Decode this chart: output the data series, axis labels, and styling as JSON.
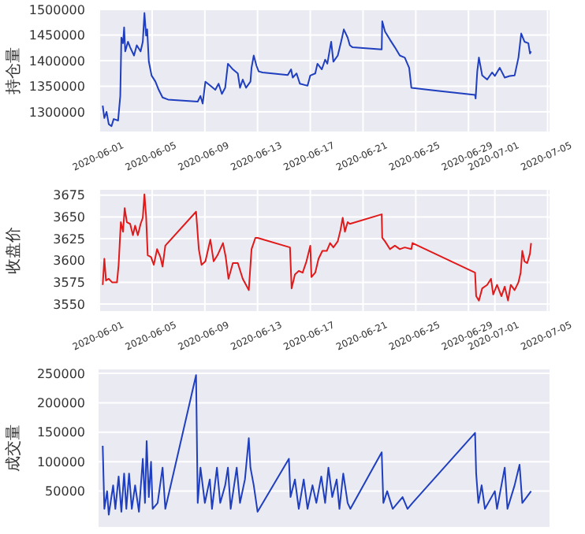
{
  "chart_data": [
    {
      "type": "line",
      "ylabel": "持仓量",
      "color": "#1f3fbf",
      "grid": true,
      "x": [
        "2020-06-01T06:00",
        "2020-06-01T09:00",
        "2020-06-01T13:00",
        "2020-06-01T17:00",
        "2020-06-01T22:00",
        "2020-06-02T02:00",
        "2020-06-02T10:00",
        "2020-06-02T14:00",
        "2020-06-02T16:00",
        "2020-06-02T19:00",
        "2020-06-02T21:00",
        "2020-06-02T23:00",
        "2020-06-03T04:00",
        "2020-06-03T08:00",
        "2020-06-03T15:00",
        "2020-06-03T20:00",
        "2020-06-04T03:00",
        "2020-06-04T07:00",
        "2020-06-04T10:00",
        "2020-06-04T13:00",
        "2020-06-04T15:00",
        "2020-06-04T18:00",
        "2020-06-04T23:00",
        "2020-06-05T06:00",
        "2020-06-05T12:00",
        "2020-06-05T19:00",
        "2020-06-06T05:00",
        "2020-06-08T11:00",
        "2020-06-08T16:00",
        "2020-06-08T20:00",
        "2020-06-09T01:00",
        "2020-06-09T10:00",
        "2020-06-09T19:00",
        "2020-06-10T01:00",
        "2020-06-10T07:00",
        "2020-06-10T13:00",
        "2020-06-10T18:00",
        "2020-06-11T03:00",
        "2020-06-11T12:00",
        "2020-06-11T16:00",
        "2020-06-11T21:00",
        "2020-06-12T03:00",
        "2020-06-12T11:00",
        "2020-06-12T13:00",
        "2020-06-12T17:00",
        "2020-06-12T22:00",
        "2020-06-13T02:00",
        "2020-06-13T09:00",
        "2020-06-15T07:00",
        "2020-06-15T13:00",
        "2020-06-15T16:00",
        "2020-06-15T23:00",
        "2020-06-16T05:00",
        "2020-06-16T19:00",
        "2020-06-17T00:00",
        "2020-06-17T09:00",
        "2020-06-17T13:00",
        "2020-06-17T21:00",
        "2020-06-18T03:00",
        "2020-06-18T07:00",
        "2020-06-18T14:00",
        "2020-06-18T18:00",
        "2020-06-19T02:00",
        "2020-06-19T09:00",
        "2020-06-19T13:00",
        "2020-06-19T20:00",
        "2020-06-20T00:00",
        "2020-06-20T05:00",
        "2020-06-22T10:00",
        "2020-06-22T11:00",
        "2020-06-22T16:00",
        "2020-06-23T01:00",
        "2020-06-23T10:00",
        "2020-06-23T19:00",
        "2020-06-24T04:00",
        "2020-06-24T12:00",
        "2020-06-24T16:00",
        "2020-06-26T15:00",
        "2020-06-29T12:00",
        "2020-06-29T13:00",
        "2020-06-29T16:00",
        "2020-06-29T19:00",
        "2020-06-30T01:00",
        "2020-06-30T10:00",
        "2020-06-30T19:00",
        "2020-07-01T00:00",
        "2020-07-01T09:00",
        "2020-07-01T18:00",
        "2020-07-02T03:00",
        "2020-07-02T12:00",
        "2020-07-02T19:00",
        "2020-07-03T00:00",
        "2020-07-03T06:00",
        "2020-07-03T13:00",
        "2020-07-03T16:00",
        "2020-07-03T18:00"
      ],
      "values": [
        1312000,
        1288000,
        1300000,
        1276000,
        1272000,
        1286000,
        1283000,
        1331000,
        1445000,
        1434000,
        1465000,
        1418000,
        1437000,
        1426000,
        1410000,
        1430000,
        1418000,
        1437000,
        1493000,
        1449000,
        1461000,
        1398000,
        1371000,
        1359000,
        1343000,
        1328000,
        1324000,
        1320000,
        1331000,
        1316000,
        1359000,
        1351000,
        1343000,
        1355000,
        1335000,
        1347000,
        1394000,
        1383000,
        1375000,
        1347000,
        1363000,
        1347000,
        1359000,
        1386000,
        1410000,
        1390000,
        1379000,
        1377000,
        1372000,
        1383000,
        1367000,
        1375000,
        1355000,
        1351000,
        1371000,
        1375000,
        1394000,
        1383000,
        1402000,
        1394000,
        1437000,
        1398000,
        1410000,
        1441000,
        1461000,
        1445000,
        1430000,
        1426000,
        1422000,
        1477000,
        1457000,
        1441000,
        1426000,
        1410000,
        1406000,
        1386000,
        1347000,
        1341000,
        1333000,
        1326000,
        1379000,
        1406000,
        1371000,
        1363000,
        1377000,
        1370000,
        1386000,
        1367000,
        1370000,
        1371000,
        1406000,
        1453000,
        1437000,
        1434000,
        1414000,
        1418000
      ],
      "xlim": [
        "2020-05-31T21:00",
        "2020-07-05T05:00"
      ],
      "xticks": [
        "2020-06-01",
        "2020-06-05",
        "2020-06-09",
        "2020-06-13",
        "2020-06-17",
        "2020-06-21",
        "2020-06-25",
        "2020-06-29",
        "2020-07-01",
        "2020-07-05"
      ],
      "ylim": [
        1260000,
        1500000
      ],
      "yticks": [
        1300000,
        1350000,
        1400000,
        1450000,
        1500000
      ]
    },
    {
      "type": "line",
      "ylabel": "收盘价",
      "color": "#e01a1a",
      "grid": true,
      "x": [
        "2020-06-01T06:00",
        "2020-06-01T09:00",
        "2020-06-01T12:00",
        "2020-06-01T17:00",
        "2020-06-01T23:00",
        "2020-06-02T08:00",
        "2020-06-02T11:00",
        "2020-06-02T15:00",
        "2020-06-02T19:00",
        "2020-06-02T22:00",
        "2020-06-03T02:00",
        "2020-06-03T08:00",
        "2020-06-03T13:00",
        "2020-06-03T17:00",
        "2020-06-03T22:00",
        "2020-06-04T03:00",
        "2020-06-04T07:00",
        "2020-06-04T10:00",
        "2020-06-04T13:00",
        "2020-06-04T16:00",
        "2020-06-04T22:00",
        "2020-06-05T03:00",
        "2020-06-05T09:00",
        "2020-06-05T15:00",
        "2020-06-05T19:00",
        "2020-06-06T00:00",
        "2020-06-08T08:00",
        "2020-06-08T13:00",
        "2020-06-08T18:00",
        "2020-06-09T01:00",
        "2020-06-09T10:00",
        "2020-06-09T16:00",
        "2020-06-09T23:00",
        "2020-06-10T09:00",
        "2020-06-10T14:00",
        "2020-06-10T19:00",
        "2020-06-11T03:00",
        "2020-06-11T12:00",
        "2020-06-11T21:00",
        "2020-06-12T08:00",
        "2020-06-12T13:00",
        "2020-06-12T20:00",
        "2020-06-13T00:00",
        "2020-06-15T11:00",
        "2020-06-15T14:00",
        "2020-06-15T20:00",
        "2020-06-16T03:00",
        "2020-06-16T10:00",
        "2020-06-16T17:00",
        "2020-06-17T00:00",
        "2020-06-17T02:00",
        "2020-06-17T09:00",
        "2020-06-17T15:00",
        "2020-06-17T22:00",
        "2020-06-18T06:00",
        "2020-06-18T12:00",
        "2020-06-18T18:00",
        "2020-06-19T02:00",
        "2020-06-19T07:00",
        "2020-06-19T11:00",
        "2020-06-19T15:00",
        "2020-06-19T20:00",
        "2020-06-20T00:00",
        "2020-06-22T10:00",
        "2020-06-22T11:00",
        "2020-06-22T16:00",
        "2020-06-23T01:00",
        "2020-06-23T10:00",
        "2020-06-23T19:00",
        "2020-06-24T04:00",
        "2020-06-24T16:00",
        "2020-06-24T18:00",
        "2020-06-29T12:00",
        "2020-06-29T14:00",
        "2020-06-29T19:00",
        "2020-06-30T01:00",
        "2020-06-30T10:00",
        "2020-06-30T17:00",
        "2020-06-30T21:00",
        "2020-07-01T04:00",
        "2020-07-01T12:00",
        "2020-07-01T18:00",
        "2020-07-02T00:00",
        "2020-07-02T05:00",
        "2020-07-02T12:00",
        "2020-07-02T19:00",
        "2020-07-02T23:00",
        "2020-07-03T02:00",
        "2020-07-03T06:00",
        "2020-07-03T11:00",
        "2020-07-03T16:00",
        "2020-07-03T18:00"
      ],
      "values": [
        3572,
        3602,
        3577,
        3579,
        3575,
        3575,
        3595,
        3644,
        3633,
        3660,
        3644,
        3642,
        3629,
        3640,
        3629,
        3642,
        3649,
        3676,
        3651,
        3606,
        3604,
        3595,
        3613,
        3604,
        3593,
        3617,
        3656,
        3613,
        3595,
        3599,
        3624,
        3599,
        3606,
        3620,
        3604,
        3579,
        3597,
        3597,
        3579,
        3566,
        3613,
        3626,
        3626,
        3615,
        3568,
        3584,
        3588,
        3586,
        3599,
        3617,
        3581,
        3586,
        3602,
        3611,
        3611,
        3620,
        3615,
        3622,
        3635,
        3649,
        3633,
        3644,
        3642,
        3653,
        3626,
        3622,
        3613,
        3617,
        3613,
        3615,
        3613,
        3620,
        3586,
        3559,
        3554,
        3568,
        3572,
        3579,
        3561,
        3572,
        3559,
        3570,
        3554,
        3572,
        3566,
        3575,
        3586,
        3611,
        3599,
        3597,
        3608,
        3620
      ],
      "xlim": [
        "2020-05-31T21:00",
        "2020-07-05T05:00"
      ],
      "xticks": [
        "2020-06-01",
        "2020-06-05",
        "2020-06-09",
        "2020-06-13",
        "2020-06-17",
        "2020-06-21",
        "2020-06-25",
        "2020-06-29",
        "2020-07-01",
        "2020-07-05"
      ],
      "ylim": [
        3541,
        3682
      ],
      "yticks": [
        3550,
        3575,
        3600,
        3625,
        3650,
        3675
      ]
    },
    {
      "type": "line",
      "ylabel": "成交量",
      "color": "#1f3fbf",
      "grid": true,
      "tick_labels": "y",
      "x": [
        "2020-06-01T06:00",
        "2020-06-01T09:00",
        "2020-06-01T14:00",
        "2020-06-01T17:00",
        "2020-06-02T01:00",
        "2020-06-02T05:00",
        "2020-06-02T11:00",
        "2020-06-02T16:00",
        "2020-06-02T21:00",
        "2020-06-03T01:00",
        "2020-06-03T06:00",
        "2020-06-03T11:00",
        "2020-06-03T17:00",
        "2020-06-04T00:00",
        "2020-06-04T07:00",
        "2020-06-04T11:00",
        "2020-06-04T14:00",
        "2020-06-04T18:00",
        "2020-06-04T22:00",
        "2020-06-05T01:00",
        "2020-06-05T10:00",
        "2020-06-05T19:00",
        "2020-06-06T00:00",
        "2020-06-08T08:00",
        "2020-06-08T11:00",
        "2020-06-08T16:00",
        "2020-06-09T00:00",
        "2020-06-09T09:00",
        "2020-06-09T13:00",
        "2020-06-09T22:00",
        "2020-06-10T04:00",
        "2020-06-10T13:00",
        "2020-06-10T18:00",
        "2020-06-10T23:00",
        "2020-06-11T10:00",
        "2020-06-11T16:00",
        "2020-06-12T01:00",
        "2020-06-12T08:00",
        "2020-06-12T11:00",
        "2020-06-12T17:00",
        "2020-06-13T00:00",
        "2020-06-15T09:00",
        "2020-06-15T12:00",
        "2020-06-15T20:00",
        "2020-06-16T03:00",
        "2020-06-16T12:00",
        "2020-06-16T19:00",
        "2020-06-17T04:00",
        "2020-06-17T11:00",
        "2020-06-17T20:00",
        "2020-06-18T03:00",
        "2020-06-18T09:00",
        "2020-06-18T16:00",
        "2020-06-19T00:00",
        "2020-06-19T05:00",
        "2020-06-19T12:00",
        "2020-06-19T20:00",
        "2020-06-20T01:00",
        "2020-06-22T10:00",
        "2020-06-22T13:00",
        "2020-06-22T20:00",
        "2020-06-23T06:00",
        "2020-06-24T00:00",
        "2020-06-24T09:00",
        "2020-06-24T18:00",
        "2020-06-29T12:00",
        "2020-06-29T14:00",
        "2020-06-29T18:00",
        "2020-06-30T00:00",
        "2020-06-30T06:00",
        "2020-07-01T00:00",
        "2020-07-01T04:00",
        "2020-07-01T18:00",
        "2020-07-01T23:00",
        "2020-07-02T12:00",
        "2020-07-02T21:00",
        "2020-07-03T02:00",
        "2020-07-03T18:00"
      ],
      "values": [
        127000,
        20000,
        50000,
        10000,
        60000,
        20000,
        75000,
        15000,
        80000,
        20000,
        80000,
        20000,
        60000,
        15000,
        105000,
        30000,
        135000,
        40000,
        100000,
        20000,
        30000,
        90000,
        20000,
        247000,
        30000,
        90000,
        30000,
        70000,
        20000,
        90000,
        30000,
        60000,
        90000,
        20000,
        90000,
        30000,
        70000,
        140000,
        90000,
        60000,
        15000,
        105000,
        40000,
        70000,
        20000,
        70000,
        20000,
        60000,
        30000,
        75000,
        30000,
        90000,
        40000,
        70000,
        20000,
        80000,
        30000,
        20000,
        116000,
        30000,
        50000,
        20000,
        40000,
        20000,
        30000,
        149000,
        80000,
        30000,
        60000,
        20000,
        50000,
        20000,
        90000,
        20000,
        60000,
        95000,
        30000,
        50000
      ],
      "xlim": [
        "2020-05-31T21:00",
        "2020-07-05T05:00"
      ],
      "xticks": [
        "2020-06-01",
        "2020-06-05",
        "2020-06-09",
        "2020-06-13",
        "2020-06-17",
        "2020-06-21",
        "2020-06-25",
        "2020-06-29",
        "2020-07-01",
        "2020-07-05"
      ],
      "ylim": [
        -12000,
        258000
      ],
      "yticks": [
        50000,
        100000,
        150000,
        200000,
        250000
      ]
    }
  ]
}
